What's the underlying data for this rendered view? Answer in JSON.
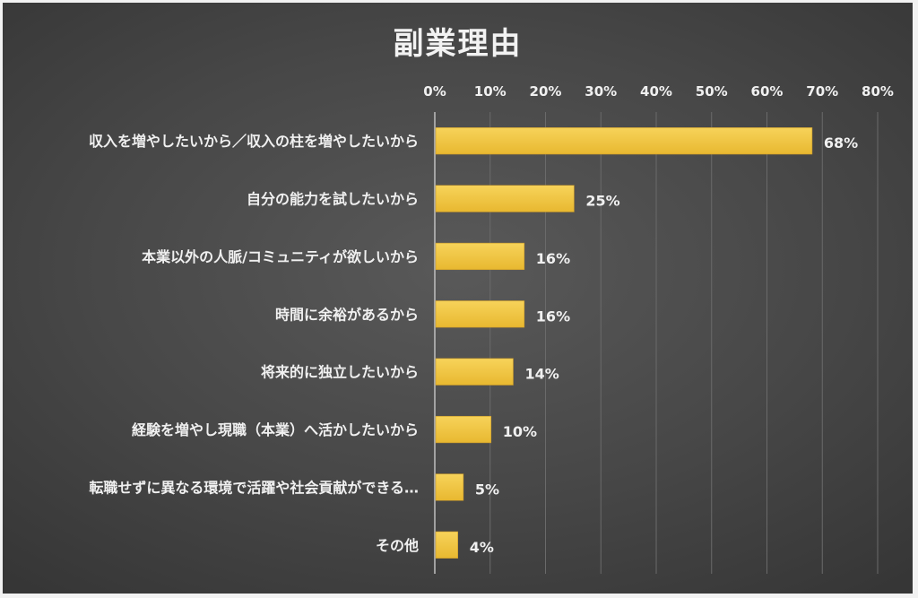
{
  "chart_data": {
    "type": "bar",
    "orientation": "horizontal",
    "title": "副業理由",
    "categories": [
      "収入を増やしたいから／収入の柱を増やしたいから",
      "自分の能力を試したいから",
      "本業以外の人脈/コミュニティが欲しいから",
      "時間に余裕があるから",
      "将来的に独立したいから",
      "経験を増やし現職（本業）へ活かしたいから",
      "転職せずに異なる環境で活躍や社会貢献ができる…",
      "その他"
    ],
    "values": [
      68,
      25,
      16,
      16,
      14,
      10,
      5,
      4
    ],
    "data_labels": [
      "68%",
      "25%",
      "16%",
      "16%",
      "14%",
      "10%",
      "5%",
      "4%"
    ],
    "x_ticks": [
      "0%",
      "10%",
      "20%",
      "30%",
      "40%",
      "50%",
      "60%",
      "70%",
      "80%"
    ],
    "xlim": [
      0,
      80
    ],
    "x_axis_position": "top",
    "grid": true,
    "bar_color": "#f2c744",
    "background_color": "#4a4a4a",
    "text_color": "#f0f0f0"
  }
}
